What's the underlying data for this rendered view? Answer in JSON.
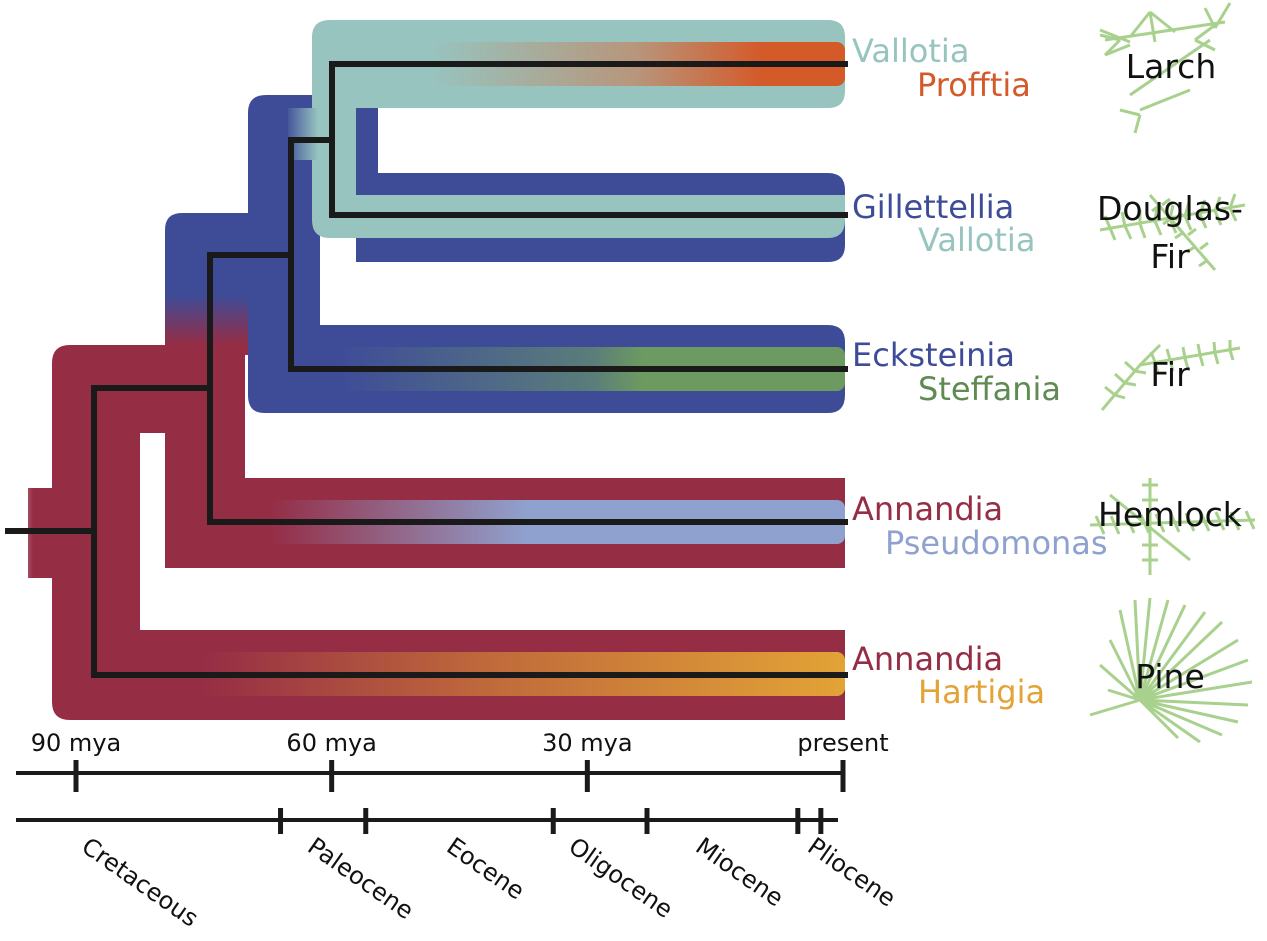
{
  "colors": {
    "annandia": "#952D45",
    "gillettellia": "#3E4C98",
    "vallotia": "#97C4BF",
    "profftia": "#D45A2A",
    "steffania": "#6D9A60",
    "pseudomonas": "#8FA2CF",
    "hartigia": "#E3A336",
    "tree": "#1a1a1a",
    "needle": "#A9D18E"
  },
  "clades": [
    {
      "id": "larch",
      "host": [
        "Larch"
      ],
      "symbionts": [
        {
          "name": "Vallotia",
          "color": "#97C4BF"
        },
        {
          "name": "Profftia",
          "color": "#D45A2A"
        }
      ]
    },
    {
      "id": "douglas",
      "host": [
        "Douglas-",
        "Fir"
      ],
      "symbionts": [
        {
          "name": "Gillettellia",
          "color": "#3E4C98"
        },
        {
          "name": "Vallotia",
          "color": "#97C4BF"
        }
      ]
    },
    {
      "id": "fir",
      "host": [
        "Fir"
      ],
      "symbionts": [
        {
          "name": "Ecksteinia",
          "color": "#3E4C98"
        },
        {
          "name": "Steffania",
          "color": "#5F8A52"
        }
      ]
    },
    {
      "id": "hemlock",
      "host": [
        "Hemlock"
      ],
      "symbionts": [
        {
          "name": "Annandia",
          "color": "#952D45"
        },
        {
          "name": "Pseudomonas",
          "color": "#8FA2CF"
        }
      ]
    },
    {
      "id": "pine",
      "host": [
        "Pine"
      ],
      "symbionts": [
        {
          "name": "Annandia",
          "color": "#952D45"
        },
        {
          "name": "Hartigia",
          "color": "#E3A336"
        }
      ]
    }
  ],
  "timescale": {
    "ticks": [
      {
        "label": "90 mya",
        "mya": 90
      },
      {
        "label": "60 mya",
        "mya": 60
      },
      {
        "label": "30 mya",
        "mya": 30
      },
      {
        "label": "present",
        "mya": 0
      }
    ]
  },
  "epochs": [
    {
      "name": "Cretaceous"
    },
    {
      "name": "Paleocene"
    },
    {
      "name": "Eocene"
    },
    {
      "name": "Oligocene"
    },
    {
      "name": "Miocene"
    },
    {
      "name": "Pliocene"
    }
  ],
  "epoch_boundaries_mya": [
    66,
    56,
    34,
    23,
    5.3,
    2.6
  ]
}
